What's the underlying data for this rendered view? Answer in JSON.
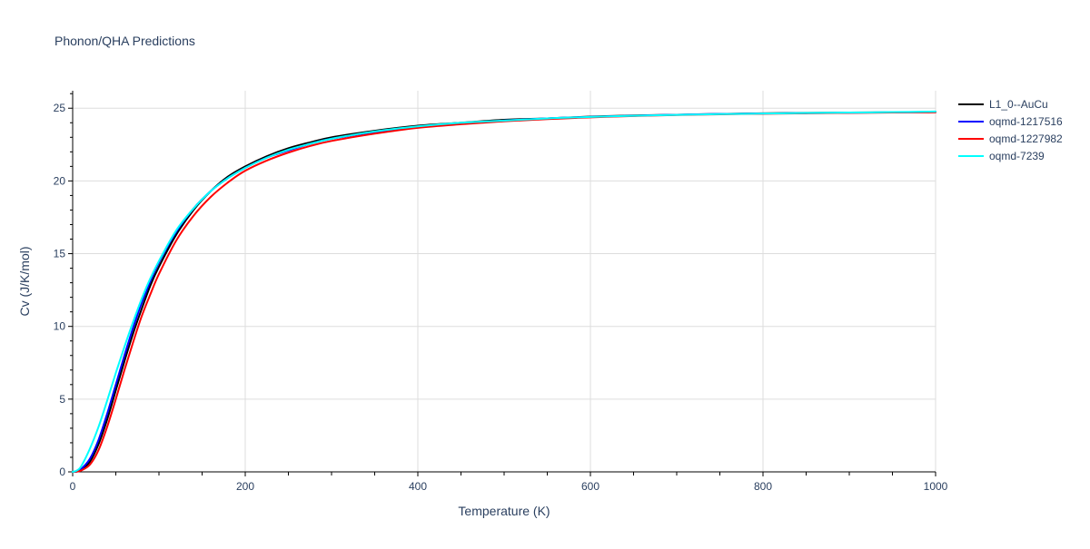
{
  "chart_data": {
    "type": "line",
    "title": "Phonon/QHA Predictions",
    "xlabel": "Temperature (K)",
    "ylabel": "Cv (J/K/mol)",
    "xlim": [
      0,
      1000
    ],
    "ylim": [
      0,
      26.2
    ],
    "x_ticks": [
      0,
      200,
      400,
      600,
      800,
      1000
    ],
    "y_ticks": [
      0,
      5,
      10,
      15,
      20,
      25
    ],
    "grid": true,
    "legend_position": "top-right",
    "series": [
      {
        "name": "L1_0--AuCu",
        "color": "#000000",
        "points": [
          [
            0,
            0
          ],
          [
            5,
            0.02
          ],
          [
            10,
            0.15
          ],
          [
            20,
            0.7
          ],
          [
            30,
            1.9
          ],
          [
            40,
            3.6
          ],
          [
            50,
            5.6
          ],
          [
            60,
            7.6
          ],
          [
            70,
            9.5
          ],
          [
            80,
            11.2
          ],
          [
            90,
            12.8
          ],
          [
            100,
            14.1
          ],
          [
            120,
            16.3
          ],
          [
            140,
            18.0
          ],
          [
            160,
            19.3
          ],
          [
            180,
            20.3
          ],
          [
            200,
            21.0
          ],
          [
            225,
            21.7
          ],
          [
            250,
            22.25
          ],
          [
            275,
            22.65
          ],
          [
            300,
            23.0
          ],
          [
            350,
            23.45
          ],
          [
            400,
            23.8
          ],
          [
            450,
            24.0
          ],
          [
            500,
            24.2
          ],
          [
            550,
            24.3
          ],
          [
            600,
            24.42
          ],
          [
            650,
            24.5
          ],
          [
            700,
            24.55
          ],
          [
            750,
            24.6
          ],
          [
            800,
            24.65
          ],
          [
            850,
            24.68
          ],
          [
            900,
            24.7
          ],
          [
            950,
            24.72
          ],
          [
            1000,
            24.75
          ]
        ]
      },
      {
        "name": "oqmd-1217516",
        "color": "#0000ff",
        "points": [
          [
            0,
            0
          ],
          [
            5,
            0.03
          ],
          [
            10,
            0.2
          ],
          [
            20,
            0.9
          ],
          [
            30,
            2.2
          ],
          [
            40,
            4.0
          ],
          [
            50,
            6.0
          ],
          [
            60,
            8.0
          ],
          [
            70,
            9.9
          ],
          [
            80,
            11.6
          ],
          [
            90,
            13.1
          ],
          [
            100,
            14.4
          ],
          [
            120,
            16.5
          ],
          [
            140,
            18.1
          ],
          [
            160,
            19.3
          ],
          [
            180,
            20.2
          ],
          [
            200,
            20.9
          ],
          [
            225,
            21.6
          ],
          [
            250,
            22.1
          ],
          [
            275,
            22.55
          ],
          [
            300,
            22.9
          ],
          [
            350,
            23.35
          ],
          [
            400,
            23.7
          ],
          [
            450,
            23.95
          ],
          [
            500,
            24.15
          ],
          [
            550,
            24.3
          ],
          [
            600,
            24.4
          ],
          [
            650,
            24.48
          ],
          [
            700,
            24.55
          ],
          [
            750,
            24.6
          ],
          [
            800,
            24.63
          ],
          [
            850,
            24.66
          ],
          [
            900,
            24.69
          ],
          [
            950,
            24.71
          ],
          [
            1000,
            24.73
          ]
        ]
      },
      {
        "name": "oqmd-1227982",
        "color": "#ff0000",
        "points": [
          [
            0,
            0
          ],
          [
            5,
            0.02
          ],
          [
            10,
            0.1
          ],
          [
            20,
            0.5
          ],
          [
            30,
            1.5
          ],
          [
            40,
            3.1
          ],
          [
            50,
            5.0
          ],
          [
            60,
            7.0
          ],
          [
            70,
            8.9
          ],
          [
            80,
            10.7
          ],
          [
            90,
            12.2
          ],
          [
            100,
            13.6
          ],
          [
            120,
            15.9
          ],
          [
            140,
            17.6
          ],
          [
            160,
            18.9
          ],
          [
            180,
            19.9
          ],
          [
            200,
            20.7
          ],
          [
            225,
            21.4
          ],
          [
            250,
            21.95
          ],
          [
            275,
            22.4
          ],
          [
            300,
            22.75
          ],
          [
            350,
            23.25
          ],
          [
            400,
            23.65
          ],
          [
            450,
            23.9
          ],
          [
            500,
            24.1
          ],
          [
            550,
            24.25
          ],
          [
            600,
            24.37
          ],
          [
            650,
            24.46
          ],
          [
            700,
            24.53
          ],
          [
            750,
            24.58
          ],
          [
            800,
            24.62
          ],
          [
            850,
            24.65
          ],
          [
            900,
            24.68
          ],
          [
            950,
            24.7
          ],
          [
            1000,
            24.72
          ]
        ]
      },
      {
        "name": "oqmd-7239",
        "color": "#00ffff",
        "points": [
          [
            0,
            0
          ],
          [
            5,
            0.1
          ],
          [
            10,
            0.4
          ],
          [
            20,
            1.6
          ],
          [
            30,
            3.1
          ],
          [
            40,
            4.9
          ],
          [
            50,
            6.8
          ],
          [
            60,
            8.6
          ],
          [
            70,
            10.3
          ],
          [
            80,
            11.9
          ],
          [
            90,
            13.3
          ],
          [
            100,
            14.5
          ],
          [
            120,
            16.6
          ],
          [
            140,
            18.1
          ],
          [
            160,
            19.3
          ],
          [
            180,
            20.2
          ],
          [
            200,
            20.9
          ],
          [
            225,
            21.6
          ],
          [
            250,
            22.15
          ],
          [
            275,
            22.55
          ],
          [
            300,
            22.9
          ],
          [
            350,
            23.4
          ],
          [
            400,
            23.75
          ],
          [
            450,
            24.0
          ],
          [
            500,
            24.15
          ],
          [
            550,
            24.3
          ],
          [
            600,
            24.4
          ],
          [
            650,
            24.48
          ],
          [
            700,
            24.54
          ],
          [
            750,
            24.59
          ],
          [
            800,
            24.63
          ],
          [
            850,
            24.67
          ],
          [
            900,
            24.7
          ],
          [
            950,
            24.73
          ],
          [
            1000,
            24.77
          ]
        ]
      }
    ]
  }
}
